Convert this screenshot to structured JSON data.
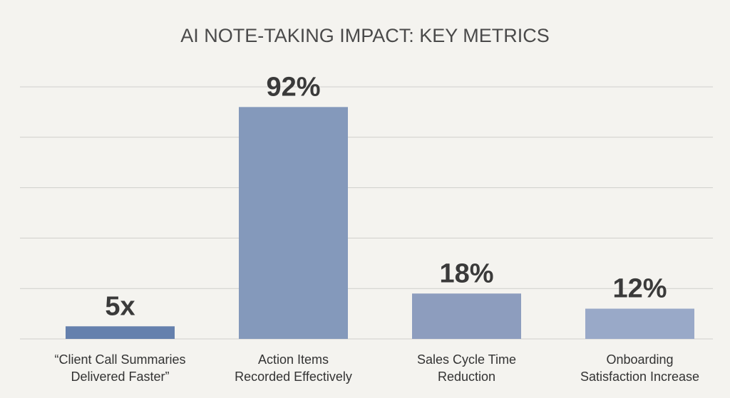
{
  "chart_data": {
    "type": "bar",
    "title": "AI NOTE-TAKING IMPACT: KEY METRICS",
    "categories": [
      [
        "“Client Call Summaries",
        "Delivered Faster”"
      ],
      [
        "Action Items",
        "Recorded Effectively"
      ],
      [
        "Sales Cycle Time",
        "Reduction"
      ],
      [
        "Onboarding",
        "Satisfaction Increase"
      ]
    ],
    "values": [
      5,
      92,
      18,
      12
    ],
    "value_labels": [
      "5x",
      "92%",
      "18%",
      "12%"
    ],
    "colors": [
      "#6580ad",
      "#8499bb",
      "#8d9dbe",
      "#99a9c8"
    ],
    "ylim": [
      0,
      100
    ],
    "yticks": [
      0,
      20,
      40,
      60,
      80,
      100
    ],
    "grid": true
  }
}
